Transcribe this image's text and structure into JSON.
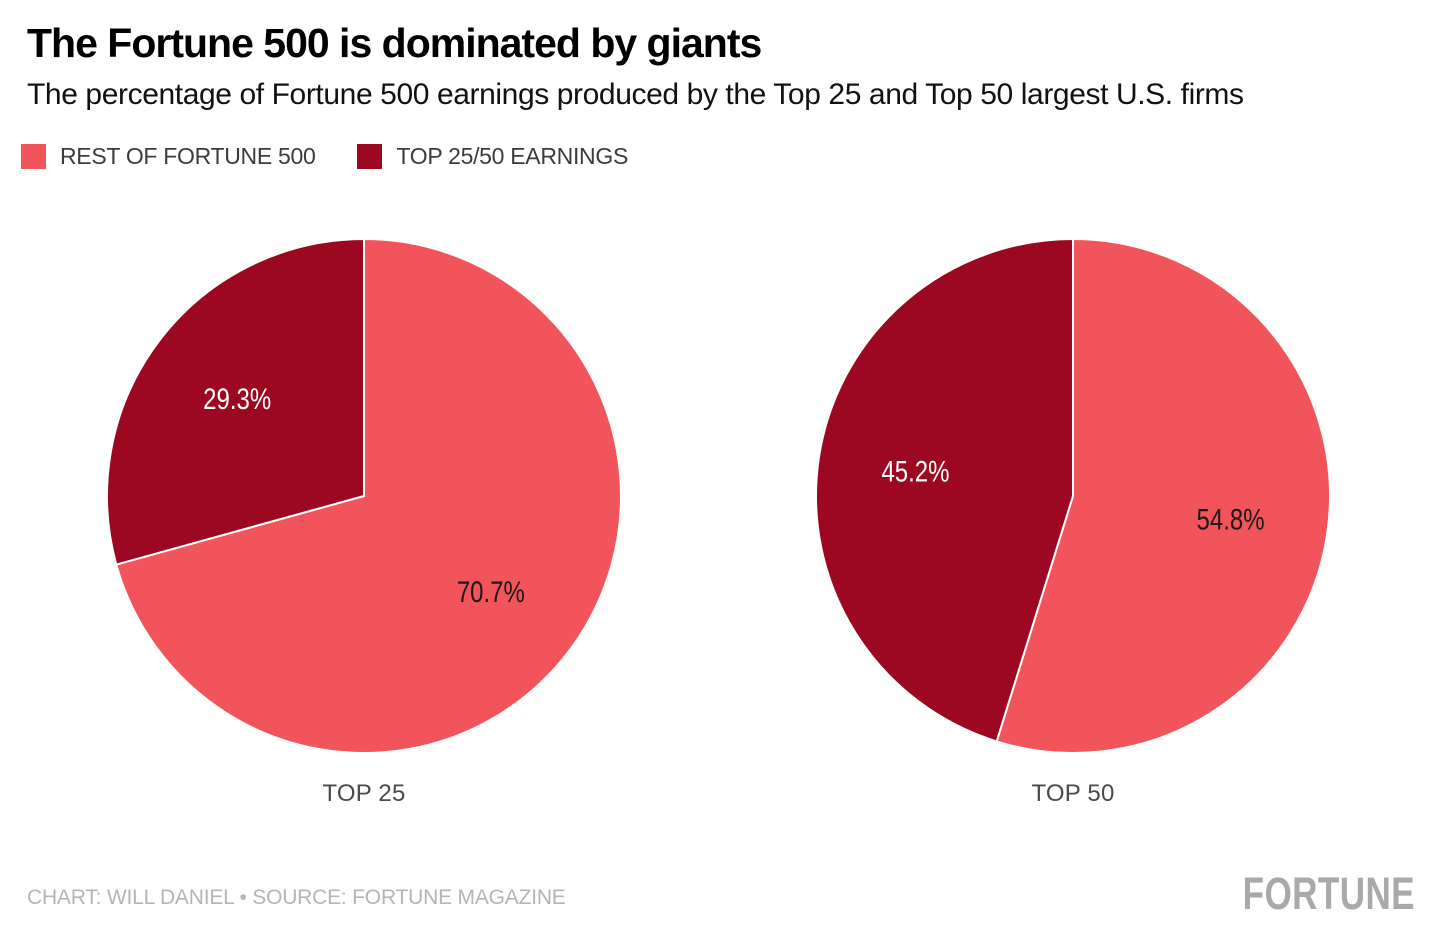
{
  "header": {
    "title": "The Fortune 500 is dominated by giants",
    "subtitle": "The percentage of Fortune 500 earnings produced by the Top 25 and Top 50 largest U.S. firms"
  },
  "colors": {
    "rest_of_fortune_500": "#F2545C",
    "top_earnings": "#9C0822",
    "value_label_on_dark": "#FFFFFF",
    "value_label_on_light": "#1A1A1A",
    "caption_text": "#4A4A4A",
    "footer_text": "#B5B5B5",
    "brand_text": "#A9A9A9"
  },
  "legend": {
    "items": [
      {
        "label": "REST OF FORTUNE 500",
        "color": "#F2545C"
      },
      {
        "label": "TOP 25/50 EARNINGS",
        "color": "#9C0822"
      }
    ]
  },
  "chart_data": [
    {
      "type": "pie",
      "title": "TOP 25",
      "start_angle_deg": 0,
      "direction": "clockwise",
      "units": "%",
      "slices": [
        {
          "label": "REST OF FORTUNE 500",
          "value": 70.7,
          "display": "70.7%",
          "color": "#F2545C",
          "text_color": "#1A1A1A"
        },
        {
          "label": "TOP 25/50 EARNINGS",
          "value": 29.3,
          "display": "29.3%",
          "color": "#9C0822",
          "text_color": "#FFFFFF"
        }
      ]
    },
    {
      "type": "pie",
      "title": "TOP 50",
      "start_angle_deg": 0,
      "direction": "clockwise",
      "units": "%",
      "slices": [
        {
          "label": "REST OF FORTUNE 500",
          "value": 54.8,
          "display": "54.8%",
          "color": "#F2545C",
          "text_color": "#1A1A1A"
        },
        {
          "label": "TOP 25/50 EARNINGS",
          "value": 45.2,
          "display": "45.2%",
          "color": "#9C0822",
          "text_color": "#FFFFFF"
        }
      ]
    }
  ],
  "footer": {
    "credit": "CHART: WILL DANIEL • SOURCE: FORTUNE MAGAZINE",
    "brand": "FORTUNE"
  }
}
